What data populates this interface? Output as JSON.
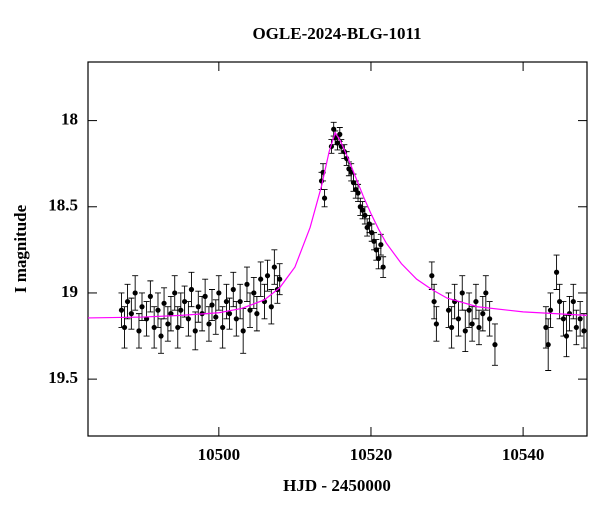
{
  "chart_data": {
    "type": "scatter",
    "title": "OGLE-2024-BLG-1011",
    "xlabel": "HJD - 2450000",
    "ylabel": "I magnitude",
    "xlim": [
      10482.8,
      10548.4
    ],
    "ylim": [
      17.66,
      19.83
    ],
    "y_inverted": true,
    "xticks": [
      10500,
      10520,
      10540
    ],
    "yticks": [
      18,
      18.5,
      19,
      19.5
    ],
    "series": [
      {
        "type": "errorbar",
        "color": "#000000",
        "x": [
          10487.2,
          10487.6,
          10488,
          10488.5,
          10489,
          10489.5,
          10489.9,
          10490.5,
          10491,
          10491.5,
          10492,
          10492.4,
          10492.8,
          10493.3,
          10493.7,
          10494.2,
          10494.6,
          10495,
          10495.5,
          10496,
          10496.4,
          10496.9,
          10497.3,
          10497.8,
          10498.2,
          10498.7,
          10499.1,
          10499.6,
          10500,
          10500.5,
          10501,
          10501.4,
          10501.9,
          10502.3,
          10502.8,
          10503.2,
          10503.7,
          10504.1,
          10504.6,
          10505,
          10505.5,
          10506,
          10506.4,
          10506.9,
          10507.3,
          10507.7,
          10508,
          10513.5,
          10513.7,
          10513.9,
          10514.8,
          10515.1,
          10515.3,
          10515.6,
          10515.9,
          10516.1,
          10516.5,
          10516.8,
          10517.1,
          10517.4,
          10517.7,
          10518,
          10518.3,
          10518.6,
          10518.9,
          10519.2,
          10519.5,
          10519.8,
          10520.1,
          10520.4,
          10520.7,
          10521,
          10521.3,
          10521.6,
          10528,
          10528.3,
          10528.6,
          10530.2,
          10530.6,
          10531,
          10531.5,
          10532,
          10532.4,
          10532.9,
          10533.3,
          10533.8,
          10534.2,
          10534.7,
          10535.1,
          10535.6,
          10536.3,
          10543,
          10543.3,
          10543.6,
          10544.4,
          10544.8,
          10545.3,
          10545.7,
          10546.1,
          10546.6,
          10547,
          10547.5,
          10548
        ],
        "values": [
          19.1,
          19.2,
          19.05,
          19.12,
          19.0,
          19.22,
          19.08,
          19.15,
          19.02,
          19.2,
          19.1,
          19.25,
          19.06,
          19.18,
          19.12,
          19.0,
          19.2,
          19.1,
          19.05,
          19.15,
          18.98,
          19.22,
          19.08,
          19.12,
          19.02,
          19.18,
          19.07,
          19.14,
          19.0,
          19.2,
          19.05,
          19.12,
          18.98,
          19.15,
          19.05,
          19.22,
          18.95,
          19.1,
          19.0,
          19.12,
          18.92,
          19.05,
          18.9,
          19.08,
          18.85,
          18.98,
          18.92,
          18.35,
          18.3,
          18.45,
          18.15,
          18.05,
          18.1,
          18.13,
          18.08,
          18.15,
          18.18,
          18.22,
          18.28,
          18.3,
          18.36,
          18.4,
          18.42,
          18.5,
          18.52,
          18.55,
          18.62,
          18.6,
          18.65,
          18.7,
          18.75,
          18.8,
          18.72,
          18.85,
          18.9,
          19.05,
          19.18,
          19.1,
          19.2,
          19.05,
          19.15,
          19.0,
          19.22,
          19.1,
          19.18,
          19.05,
          19.2,
          19.12,
          19.0,
          19.15,
          19.3,
          19.2,
          19.3,
          19.1,
          18.88,
          19.05,
          19.15,
          19.25,
          19.12,
          19.05,
          19.2,
          19.15,
          19.22
        ],
        "errors": [
          0.1,
          0.12,
          0.1,
          0.09,
          0.1,
          0.1,
          0.08,
          0.1,
          0.09,
          0.12,
          0.1,
          0.1,
          0.09,
          0.1,
          0.1,
          0.1,
          0.12,
          0.1,
          0.09,
          0.1,
          0.1,
          0.11,
          0.09,
          0.1,
          0.1,
          0.1,
          0.09,
          0.1,
          0.1,
          0.12,
          0.1,
          0.09,
          0.1,
          0.1,
          0.1,
          0.13,
          0.1,
          0.1,
          0.09,
          0.1,
          0.1,
          0.1,
          0.09,
          0.1,
          0.1,
          0.08,
          0.09,
          0.05,
          0.05,
          0.05,
          0.04,
          0.04,
          0.04,
          0.04,
          0.04,
          0.04,
          0.04,
          0.04,
          0.04,
          0.05,
          0.05,
          0.05,
          0.05,
          0.05,
          0.05,
          0.05,
          0.05,
          0.05,
          0.05,
          0.05,
          0.06,
          0.06,
          0.06,
          0.06,
          0.08,
          0.1,
          0.1,
          0.1,
          0.12,
          0.1,
          0.1,
          0.1,
          0.12,
          0.1,
          0.1,
          0.1,
          0.1,
          0.1,
          0.1,
          0.1,
          0.12,
          0.12,
          0.15,
          0.1,
          0.1,
          0.1,
          0.1,
          0.12,
          0.1,
          0.1,
          0.1,
          0.1,
          0.1
        ]
      },
      {
        "type": "line",
        "color": "#ff00ff",
        "x": [
          10482.8,
          10490,
          10495,
          10500,
          10503,
          10506,
          10508,
          10510,
          10512,
          10513.5,
          10514.5,
          10515.3,
          10516,
          10517,
          10518,
          10519,
          10520,
          10521,
          10522,
          10524,
          10526,
          10528,
          10530,
          10534,
          10540,
          10548.4
        ],
        "values": [
          19.145,
          19.14,
          19.13,
          19.115,
          19.09,
          19.04,
          18.97,
          18.85,
          18.62,
          18.38,
          18.18,
          18.07,
          18.12,
          18.22,
          18.33,
          18.44,
          18.54,
          18.63,
          18.71,
          18.83,
          18.92,
          18.98,
          19.03,
          19.08,
          19.11,
          19.13
        ]
      }
    ]
  }
}
